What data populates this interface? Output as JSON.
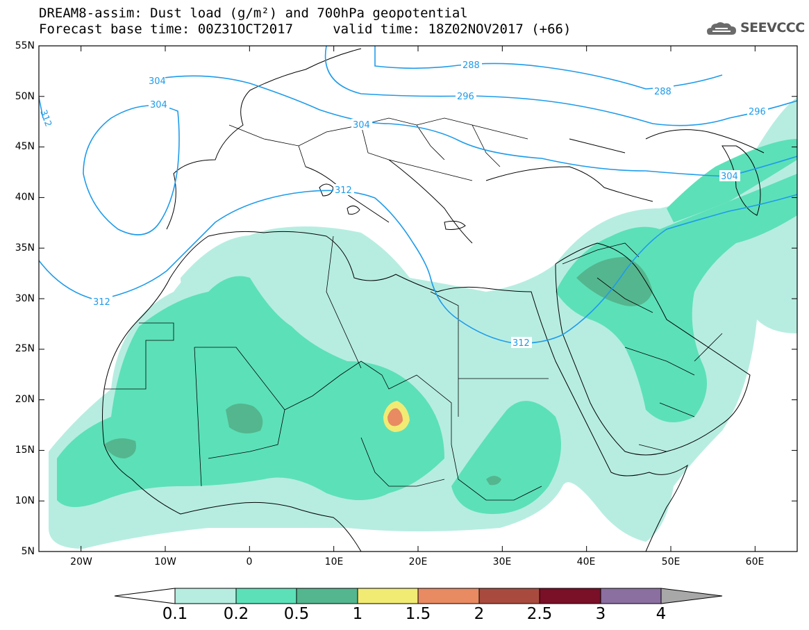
{
  "header": {
    "title_line1": "DREAM8-assim: Dust load (g/m²) and 700hPa geopotential",
    "title_line2": "Forecast base time: 00Z31OCT2017     valid time: 18Z02NOV2017 (+66)",
    "logo_text": "SEEVCCC",
    "logo_icon": "cloud-logo-icon"
  },
  "map": {
    "lon_range": [
      -25,
      65
    ],
    "lat_range": [
      5,
      55
    ],
    "lat_ticks": [
      "55N",
      "50N",
      "45N",
      "40N",
      "35N",
      "30N",
      "25N",
      "20N",
      "15N",
      "10N",
      "5N"
    ],
    "lon_ticks": [
      "20W",
      "10W",
      "0",
      "10E",
      "20E",
      "30E",
      "40E",
      "50E",
      "60E"
    ],
    "contour_labels": [
      "288",
      "288",
      "296",
      "296",
      "304",
      "304",
      "304",
      "304",
      "312",
      "312",
      "312",
      "312"
    ],
    "colors": {
      "contour": "#1e9bea",
      "coast": "#000000"
    }
  },
  "colorbar": {
    "levels": [
      "0.1",
      "0.2",
      "0.5",
      "1",
      "1.5",
      "2",
      "2.5",
      "3",
      "4"
    ],
    "colors": [
      "#ffffff",
      "#b7ede1",
      "#5ce0b8",
      "#54b68e",
      "#f1eb74",
      "#e88a62",
      "#a84b3e",
      "#7a0f28",
      "#8a6fa0",
      "#a8a8a8"
    ]
  }
}
